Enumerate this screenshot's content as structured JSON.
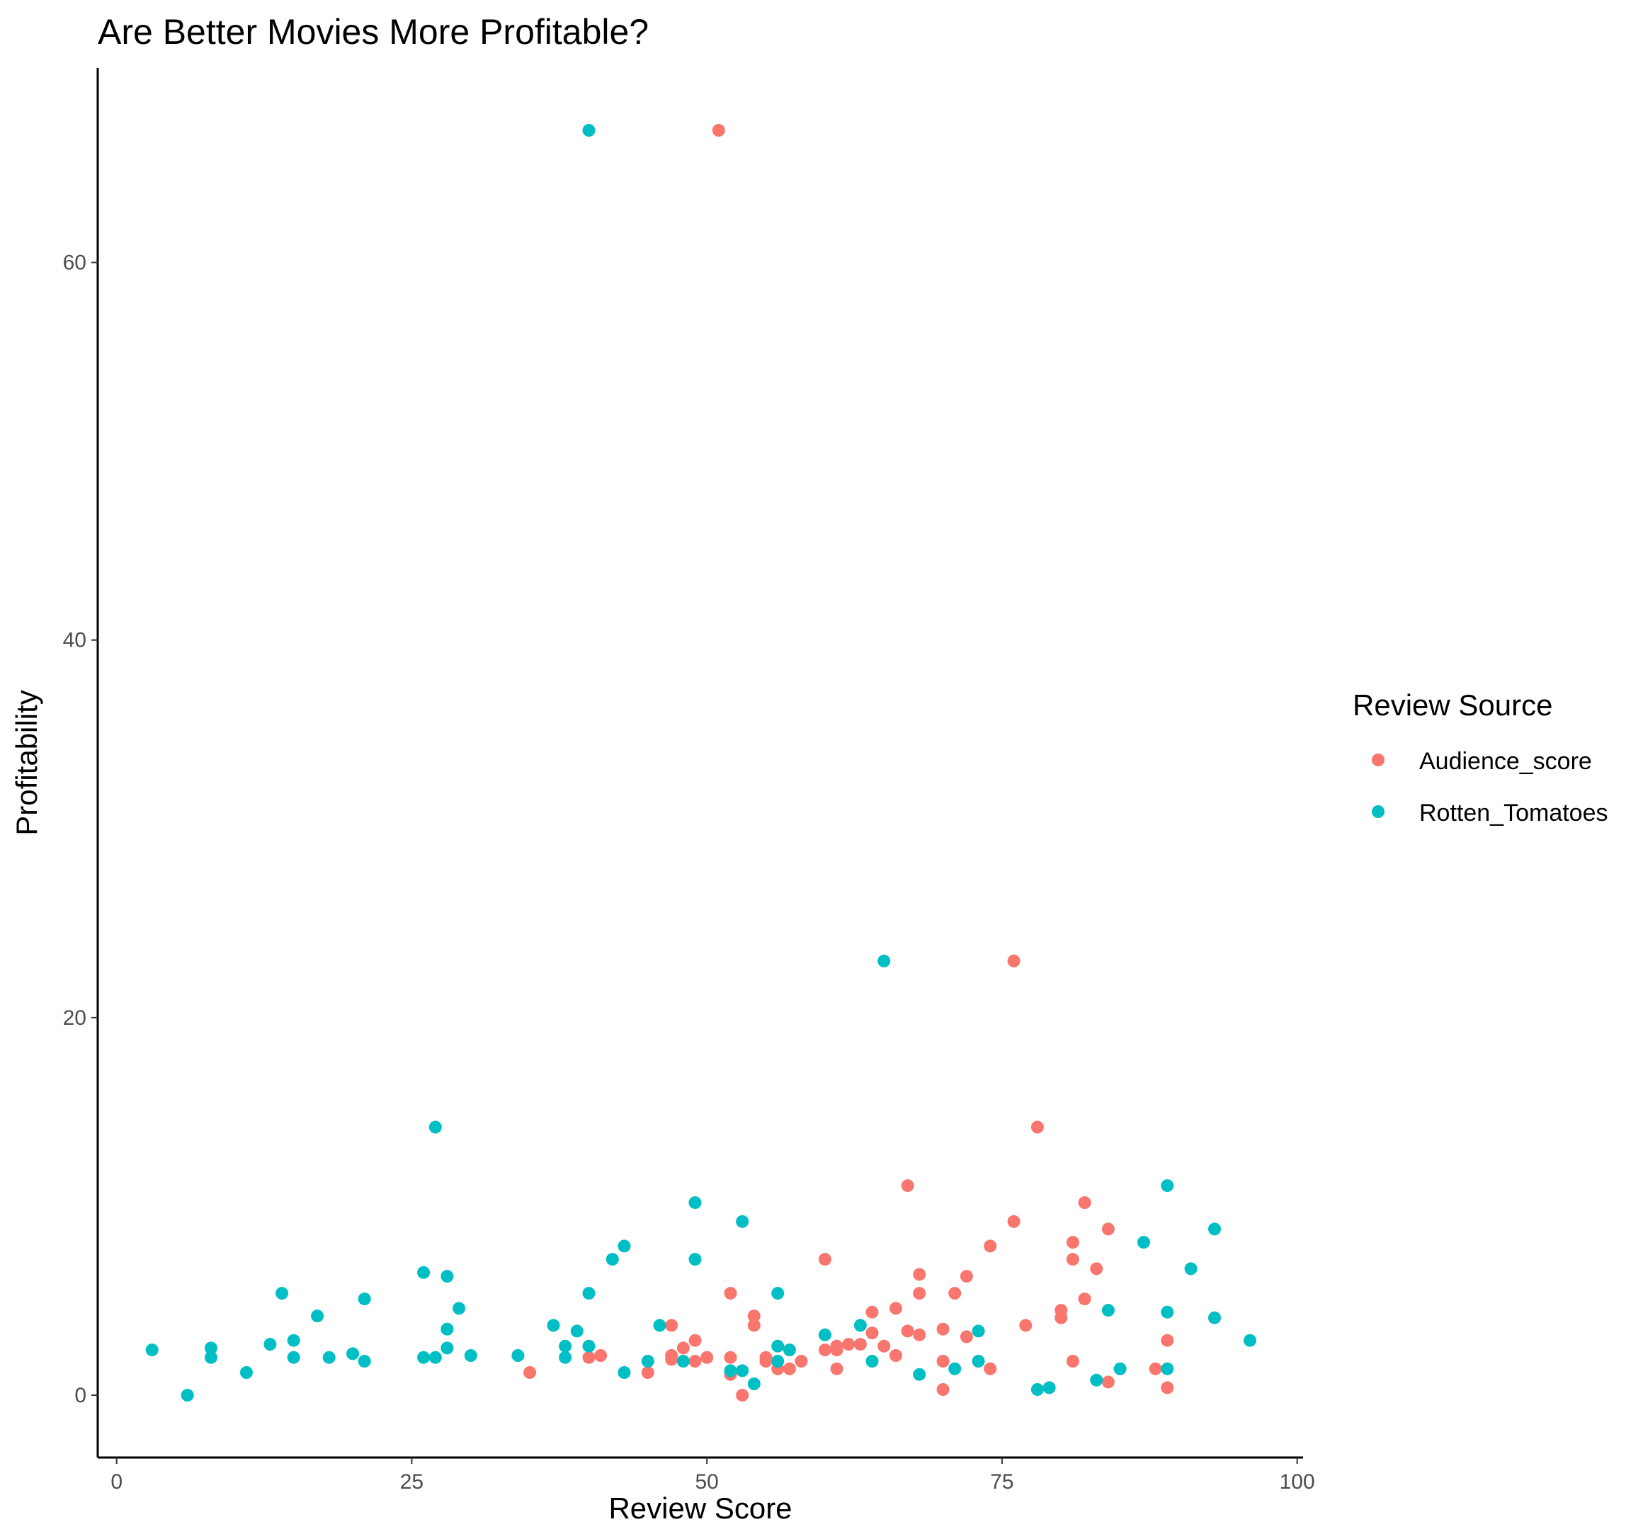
{
  "chart_data": {
    "type": "scatter",
    "title": "Are Better Movies More Profitable?",
    "xlabel": "Review Score",
    "ylabel": "Profitability",
    "xlim": [
      -1.6,
      100.5
    ],
    "ylim": [
      -3.3,
      70.3
    ],
    "x_ticks": [
      0,
      25,
      50,
      75,
      100
    ],
    "y_ticks": [
      0,
      20,
      40,
      60
    ],
    "x_tick_labels": [
      "0",
      "25",
      "50",
      "75",
      "100"
    ],
    "y_tick_labels": [
      "0",
      "20",
      "40",
      "60"
    ],
    "grid": false,
    "legend": {
      "title": "Review Source",
      "position": "right"
    },
    "series": [
      {
        "name": "Audience_score",
        "color": "#F8766D",
        "points": [
          [
            51,
            67
          ],
          [
            76,
            23
          ],
          [
            78,
            14.2
          ],
          [
            67,
            11.1
          ],
          [
            82,
            10.2
          ],
          [
            76,
            9.2
          ],
          [
            84,
            8.8
          ],
          [
            81,
            8.1
          ],
          [
            74,
            7.9
          ],
          [
            60,
            7.2
          ],
          [
            81,
            7.2
          ],
          [
            83,
            6.7
          ],
          [
            68,
            6.4
          ],
          [
            72,
            6.3
          ],
          [
            52,
            5.4
          ],
          [
            68,
            5.4
          ],
          [
            71,
            5.4
          ],
          [
            82,
            5.1
          ],
          [
            66,
            4.6
          ],
          [
            64,
            4.4
          ],
          [
            80,
            4.5
          ],
          [
            54,
            4.2
          ],
          [
            80,
            4.1
          ],
          [
            47,
            3.7
          ],
          [
            54,
            3.7
          ],
          [
            77,
            3.7
          ],
          [
            67,
            3.4
          ],
          [
            64,
            3.3
          ],
          [
            68,
            3.2
          ],
          [
            72,
            3.1
          ],
          [
            49,
            2.9
          ],
          [
            89,
            2.9
          ],
          [
            63,
            2.7
          ],
          [
            65,
            2.6
          ],
          [
            62,
            2.7
          ],
          [
            61,
            2.6
          ],
          [
            61,
            2.4
          ],
          [
            60,
            2.4
          ],
          [
            48,
            2.5
          ],
          [
            47,
            2.1
          ],
          [
            41,
            2.1
          ],
          [
            66,
            2.1
          ],
          [
            40,
            2.0
          ],
          [
            52,
            2.0
          ],
          [
            50,
            2.0
          ],
          [
            55,
            2.0
          ],
          [
            47,
            1.9
          ],
          [
            49,
            1.8
          ],
          [
            55,
            1.8
          ],
          [
            58,
            1.8
          ],
          [
            70,
            1.8
          ],
          [
            81,
            1.8
          ],
          [
            35,
            1.2
          ],
          [
            45,
            1.2
          ],
          [
            52,
            1.1
          ],
          [
            56,
            1.4
          ],
          [
            57,
            1.4
          ],
          [
            61,
            1.4
          ],
          [
            74,
            1.4
          ],
          [
            88,
            1.4
          ],
          [
            84,
            0.7
          ],
          [
            89,
            0.4
          ],
          [
            70,
            0.3
          ],
          [
            53,
            0.0
          ],
          [
            70,
            3.5
          ]
        ]
      },
      {
        "name": "Rotten_Tomatoes",
        "color": "#00BFC4",
        "points": [
          [
            40,
            67
          ],
          [
            65,
            23
          ],
          [
            27,
            14.2
          ],
          [
            89,
            11.1
          ],
          [
            49,
            10.2
          ],
          [
            53,
            9.2
          ],
          [
            93,
            8.8
          ],
          [
            87,
            8.1
          ],
          [
            43,
            7.9
          ],
          [
            42,
            7.2
          ],
          [
            49,
            7.2
          ],
          [
            91,
            6.7
          ],
          [
            26,
            6.5
          ],
          [
            28,
            6.3
          ],
          [
            14,
            5.4
          ],
          [
            40,
            5.4
          ],
          [
            56,
            5.4
          ],
          [
            21,
            5.1
          ],
          [
            29,
            4.6
          ],
          [
            84,
            4.5
          ],
          [
            89,
            4.4
          ],
          [
            17,
            4.2
          ],
          [
            93,
            4.1
          ],
          [
            37,
            3.7
          ],
          [
            46,
            3.7
          ],
          [
            63,
            3.7
          ],
          [
            28,
            3.5
          ],
          [
            39,
            3.4
          ],
          [
            73,
            3.4
          ],
          [
            60,
            3.2
          ],
          [
            96,
            2.9
          ],
          [
            15,
            2.9
          ],
          [
            13,
            2.7
          ],
          [
            38,
            2.6
          ],
          [
            40,
            2.6
          ],
          [
            56,
            2.6
          ],
          [
            28,
            2.5
          ],
          [
            8,
            2.5
          ],
          [
            3,
            2.4
          ],
          [
            57,
            2.4
          ],
          [
            20,
            2.2
          ],
          [
            30,
            2.1
          ],
          [
            34,
            2.1
          ],
          [
            15,
            2.0
          ],
          [
            18,
            2.0
          ],
          [
            26,
            2.0
          ],
          [
            27,
            2.0
          ],
          [
            38,
            2.0
          ],
          [
            8,
            2.0
          ],
          [
            21,
            1.8
          ],
          [
            45,
            1.8
          ],
          [
            48,
            1.8
          ],
          [
            56,
            1.8
          ],
          [
            64,
            1.8
          ],
          [
            73,
            1.8
          ],
          [
            11,
            1.2
          ],
          [
            43,
            1.2
          ],
          [
            52,
            1.3
          ],
          [
            53,
            1.3
          ],
          [
            71,
            1.4
          ],
          [
            85,
            1.4
          ],
          [
            89,
            1.4
          ],
          [
            68,
            1.1
          ],
          [
            83,
            0.8
          ],
          [
            54,
            0.6
          ],
          [
            79,
            0.4
          ],
          [
            78,
            0.3
          ],
          [
            6,
            0.0
          ]
        ]
      }
    ]
  }
}
